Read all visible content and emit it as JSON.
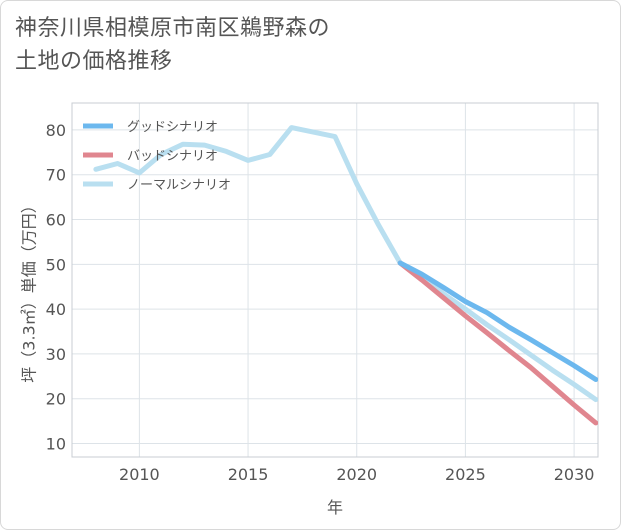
{
  "title_line1": "神奈川県相模原市南区鵜野森の",
  "title_line2": "土地の価格推移",
  "chart_data": {
    "type": "line",
    "xlabel": "年",
    "ylabel": "坪（3.3㎡）単価（万円）",
    "xlim": [
      2006.9,
      2031.1
    ],
    "ylim": [
      7,
      86
    ],
    "x_ticks": [
      2010,
      2015,
      2020,
      2025,
      2030
    ],
    "x_tick_labels": [
      "2010",
      "2015",
      "2020",
      "2025",
      "2030"
    ],
    "y_ticks": [
      10,
      20,
      30,
      40,
      50,
      60,
      70,
      80
    ],
    "y_tick_labels": [
      "10",
      "20",
      "30",
      "40",
      "50",
      "60",
      "70",
      "80"
    ],
    "grid": true,
    "legend_position": "top-left",
    "series": [
      {
        "name": "グッドシナリオ",
        "color": "#6cb8ee",
        "x": [
          2022,
          2023,
          2024,
          2025,
          2026,
          2027,
          2028,
          2029,
          2030,
          2031
        ],
        "values": [
          50.3,
          47.8,
          44.8,
          41.7,
          39.2,
          36.0,
          33.2,
          30.3,
          27.4,
          24.3
        ]
      },
      {
        "name": "バッドシナリオ",
        "color": "#e0868f",
        "x": [
          2022,
          2023,
          2024,
          2025,
          2026,
          2027,
          2028,
          2029,
          2030,
          2031
        ],
        "values": [
          50.3,
          46.5,
          42.5,
          38.5,
          34.7,
          30.8,
          27.0,
          22.8,
          18.6,
          14.6
        ]
      },
      {
        "name": "ノーマルシナリオ",
        "color": "#b9dff0",
        "x": [
          2008,
          2009,
          2010,
          2011,
          2012,
          2013,
          2014,
          2015,
          2016,
          2017,
          2018,
          2019,
          2020,
          2021,
          2022,
          2023,
          2024,
          2025,
          2026,
          2027,
          2028,
          2029,
          2030,
          2031
        ],
        "values": [
          71.2,
          72.5,
          70.4,
          74.5,
          76.8,
          76.6,
          75.2,
          73.2,
          74.5,
          80.5,
          79.5,
          78.5,
          68.0,
          58.8,
          50.3,
          47.3,
          43.4,
          40.0,
          36.5,
          33.2,
          29.8,
          26.4,
          23.2,
          19.8
        ]
      }
    ]
  }
}
